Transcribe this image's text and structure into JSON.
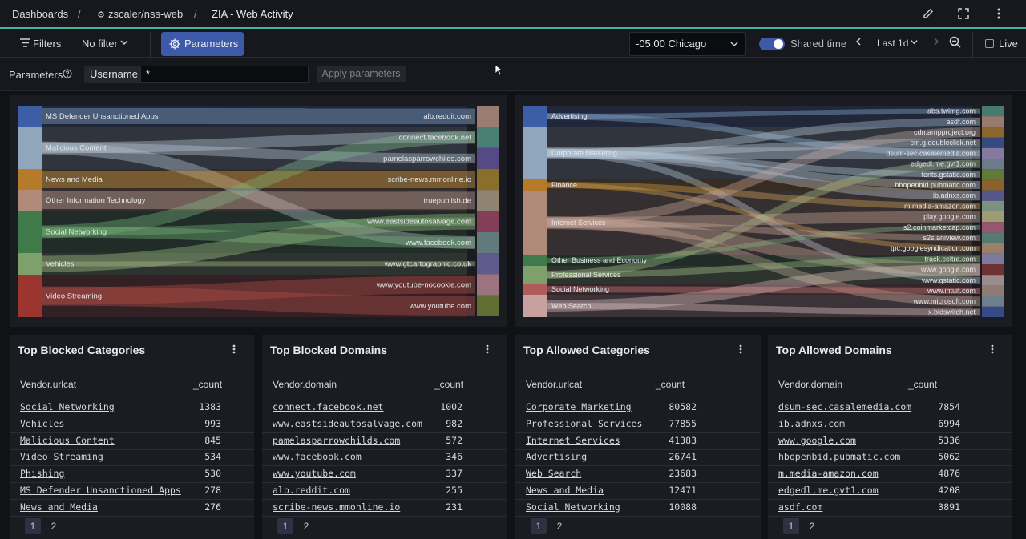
{
  "breadcrumb": {
    "root": "Dashboards",
    "org": "zscaler/nss-web",
    "page": "ZIA - Web Activity",
    "sep": "/"
  },
  "filterbar": {
    "filters_label": "Filters",
    "no_filter_label": "No filter",
    "parameters_label": "Parameters",
    "timezone": "-05:00 Chicago",
    "shared_time_label": "Shared time",
    "range": "Last 1d",
    "live_label": "Live"
  },
  "parameters": {
    "label": "Parameters",
    "username_label": "Username",
    "username_value": "*",
    "apply_label": "Apply parameters"
  },
  "blocked_sankey": {
    "left": [
      "MS Defender Unsanctioned Apps",
      "Malicious Content",
      "News and Media",
      "Other Information Technology",
      "Social Networking",
      "Vehicles",
      "Video Streaming"
    ],
    "right": [
      "alb.reddit.com",
      "connect.facebook.net",
      "pamelasparrowchilds.com",
      "scribe-news.mmonline.io",
      "truepublish.de",
      "www.eastsideautosalvage.com",
      "www.facebook.com",
      "www.gtcartographic.co.uk",
      "www.youtube-nocookie.com",
      "www.youtube.com"
    ]
  },
  "allowed_sankey": {
    "left": [
      "Advertising",
      "Corporate Marketing",
      "Finance",
      "Internet Services",
      "Other Business and Economy",
      "Professional Services",
      "Social Networking",
      "Web Search"
    ],
    "right": [
      "abs.twimg.com",
      "asdf.com",
      "cdn.ampproject.org",
      "cm.g.doubleclick.net",
      "dsum-sec.casalemedia.com",
      "edgedl.me.gvt1.com",
      "fonts.gstatic.com",
      "hbopenbid.pubmatic.com",
      "ib.adnxs.com",
      "m.media-amazon.com",
      "play.google.com",
      "s2.coinmarketcap.com",
      "s2s.aniview.com",
      "tpc.googlesyndication.com",
      "track.celtra.com",
      "www.google.com",
      "www.gstatic.com",
      "www.intuit.com",
      "www.microsoft.com",
      "x.bidswitch.net"
    ]
  },
  "tables": [
    {
      "title": "Top Blocked Categories",
      "col1": "Vendor.urlcat",
      "col2": "_count",
      "rows": [
        {
          "name": "Social Networking",
          "count": "1383"
        },
        {
          "name": "Vehicles",
          "count": "993"
        },
        {
          "name": "Malicious Content",
          "count": "845"
        },
        {
          "name": "Video Streaming",
          "count": "534"
        },
        {
          "name": "Phishing",
          "count": "530"
        },
        {
          "name": "MS Defender Unsanctioned Apps",
          "count": "278"
        },
        {
          "name": "News and Media",
          "count": "276"
        }
      ],
      "pages": [
        "1",
        "2"
      ]
    },
    {
      "title": "Top Blocked Domains",
      "col1": "Vendor.domain",
      "col2": "_count",
      "rows": [
        {
          "name": "connect.facebook.net",
          "count": "1002"
        },
        {
          "name": "www.eastsideautosalvage.com",
          "count": "982"
        },
        {
          "name": "pamelasparrowchilds.com",
          "count": "572"
        },
        {
          "name": "www.facebook.com",
          "count": "346"
        },
        {
          "name": "www.youtube.com",
          "count": "337"
        },
        {
          "name": "alb.reddit.com",
          "count": "255"
        },
        {
          "name": "scribe-news.mmonline.io",
          "count": "231"
        }
      ],
      "pages": [
        "1",
        "2"
      ]
    },
    {
      "title": "Top Allowed Categories",
      "col1": "Vendor.urlcat",
      "col2": "_count",
      "rows": [
        {
          "name": "Corporate Marketing",
          "count": "80582"
        },
        {
          "name": "Professional Services",
          "count": "77855"
        },
        {
          "name": "Internet Services",
          "count": "41383"
        },
        {
          "name": "Advertising",
          "count": "26741"
        },
        {
          "name": "Web Search",
          "count": "23683"
        },
        {
          "name": "News and Media",
          "count": "12471"
        },
        {
          "name": "Social Networking",
          "count": "10088"
        }
      ],
      "pages": [
        "1",
        "2"
      ]
    },
    {
      "title": "Top Allowed Domains",
      "col1": "Vendor.domain",
      "col2": "_count",
      "rows": [
        {
          "name": "dsum-sec.casalemedia.com",
          "count": "7854"
        },
        {
          "name": "ib.adnxs.com",
          "count": "6994"
        },
        {
          "name": "www.google.com",
          "count": "5336"
        },
        {
          "name": "hbopenbid.pubmatic.com",
          "count": "5062"
        },
        {
          "name": "m.media-amazon.com",
          "count": "4876"
        },
        {
          "name": "edgedl.me.gvt1.com",
          "count": "4208"
        },
        {
          "name": "asdf.com",
          "count": "3891"
        }
      ],
      "pages": [
        "1",
        "2"
      ]
    }
  ],
  "colors": {
    "accent": "#3d5aa8",
    "teal_rule": "#3fb6a0",
    "bg": "#111216",
    "panel": "#1b1c21"
  }
}
